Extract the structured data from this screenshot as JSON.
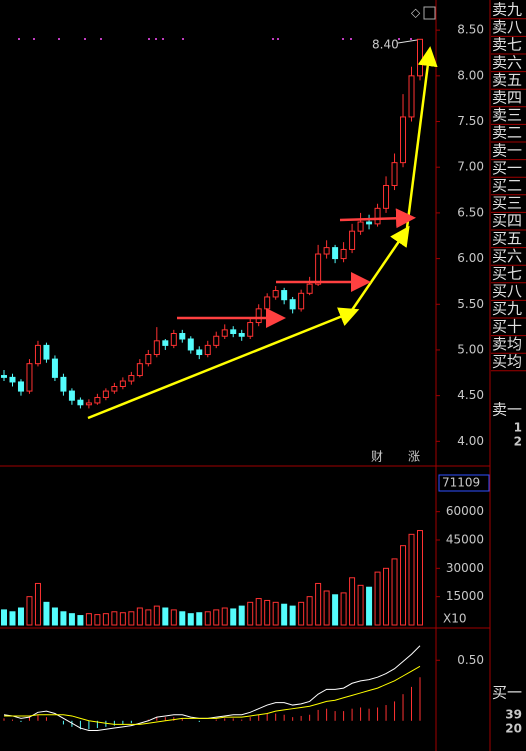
{
  "chart_data": [
    {
      "type": "candlestick",
      "open": [
        4.72,
        4.7,
        4.65,
        4.55,
        4.85,
        5.05,
        4.9,
        4.7,
        4.55,
        4.45,
        4.4,
        4.42,
        4.48,
        4.55,
        4.6,
        4.66,
        4.72,
        4.85,
        4.95,
        5.1,
        5.05,
        5.18,
        5.12,
        5.0,
        4.95,
        5.05,
        5.15,
        5.22,
        5.18,
        5.15,
        5.3,
        5.45,
        5.58,
        5.65,
        5.55,
        5.45,
        5.62,
        5.72,
        6.05,
        6.12,
        6.0,
        6.1,
        6.3,
        6.4,
        6.38,
        6.55,
        6.8,
        7.05,
        7.55,
        8.0
      ],
      "high": [
        4.78,
        4.74,
        4.68,
        4.9,
        5.1,
        5.08,
        4.94,
        4.74,
        4.58,
        4.48,
        4.46,
        4.52,
        4.58,
        4.64,
        4.7,
        4.76,
        4.9,
        5.0,
        5.25,
        5.12,
        5.22,
        5.22,
        5.15,
        5.04,
        5.1,
        5.2,
        5.28,
        5.26,
        5.22,
        5.35,
        5.5,
        5.62,
        5.7,
        5.68,
        5.58,
        5.66,
        5.8,
        6.15,
        6.2,
        6.15,
        6.18,
        6.38,
        6.5,
        6.48,
        6.6,
        6.9,
        7.15,
        7.8,
        8.1,
        8.4
      ],
      "low": [
        4.66,
        4.6,
        4.5,
        4.52,
        4.82,
        4.86,
        4.66,
        4.5,
        4.4,
        4.36,
        4.36,
        4.4,
        4.45,
        4.52,
        4.57,
        4.62,
        4.7,
        4.82,
        4.92,
        5.0,
        5.02,
        5.08,
        4.96,
        4.9,
        4.92,
        5.02,
        5.12,
        5.14,
        5.1,
        5.12,
        5.26,
        5.42,
        5.55,
        5.5,
        5.4,
        5.42,
        5.6,
        5.7,
        6.0,
        5.95,
        5.96,
        6.06,
        6.26,
        6.32,
        6.35,
        6.5,
        6.75,
        7.0,
        7.5,
        7.95
      ],
      "close": [
        4.7,
        4.65,
        4.55,
        4.85,
        5.05,
        4.9,
        4.7,
        4.55,
        4.45,
        4.4,
        4.42,
        4.48,
        4.55,
        4.6,
        4.66,
        4.72,
        4.85,
        4.95,
        5.1,
        5.05,
        5.18,
        5.12,
        5.0,
        4.95,
        5.05,
        5.15,
        5.22,
        5.18,
        5.15,
        5.3,
        5.45,
        5.58,
        5.65,
        5.55,
        5.45,
        5.62,
        5.72,
        6.05,
        6.12,
        6.0,
        6.1,
        6.3,
        6.4,
        6.38,
        6.55,
        6.8,
        7.05,
        7.55,
        8.0,
        8.4
      ],
      "up_color": "#ff3232",
      "down_color": "#54fcfc",
      "max_label": "8.40",
      "markers": [
        "财",
        "涨"
      ],
      "ylim": [
        3.73,
        8.83
      ],
      "yticks": [
        {
          "value": 4,
          "label": "4.00"
        },
        {
          "value": 4.5,
          "label": "4.50"
        },
        {
          "value": 5,
          "label": "5.00"
        },
        {
          "value": 5.5,
          "label": "5.50"
        },
        {
          "value": 6,
          "label": "6.00"
        },
        {
          "value": 6.5,
          "label": "6.50"
        },
        {
          "value": 7,
          "label": "7.00"
        },
        {
          "value": 7.5,
          "label": "7.50"
        },
        {
          "value": 8,
          "label": "8.00"
        },
        {
          "value": 8.5,
          "label": "8.50"
        }
      ]
    },
    {
      "type": "volume",
      "values": [
        8000,
        7000,
        9000,
        15000,
        22000,
        12000,
        9000,
        7000,
        6000,
        5000,
        6000,
        5500,
        6000,
        7000,
        6500,
        7000,
        9000,
        8000,
        10000,
        9000,
        8000,
        7000,
        6000,
        6500,
        7000,
        8000,
        9000,
        8500,
        10000,
        12000,
        14000,
        13000,
        12000,
        11000,
        10000,
        12000,
        15000,
        22000,
        18000,
        16000,
        17000,
        25000,
        21000,
        20000,
        28000,
        30000,
        35000,
        42000,
        48000,
        50000
      ],
      "readout": "71109",
      "scale_label": "X10",
      "ylim": [
        0,
        81000
      ],
      "yticks": [
        15000,
        30000,
        45000,
        60000
      ]
    },
    {
      "type": "macd",
      "values": [
        0.02,
        0.01,
        -0.01,
        0.03,
        0.05,
        0.03,
        0.0,
        -0.03,
        -0.05,
        -0.07,
        -0.07,
        -0.06,
        -0.05,
        -0.04,
        -0.03,
        -0.02,
        0.0,
        0.01,
        0.03,
        0.03,
        0.03,
        0.02,
        0.0,
        -0.01,
        0.0,
        0.01,
        0.02,
        0.02,
        0.01,
        0.03,
        0.05,
        0.06,
        0.06,
        0.05,
        0.03,
        0.04,
        0.05,
        0.09,
        0.1,
        0.08,
        0.08,
        0.1,
        0.11,
        0.1,
        0.11,
        0.13,
        0.16,
        0.22,
        0.28,
        0.36
      ],
      "dif": [
        0.05,
        0.04,
        0.02,
        0.03,
        0.07,
        0.08,
        0.06,
        0.02,
        -0.02,
        -0.06,
        -0.08,
        -0.08,
        -0.07,
        -0.06,
        -0.05,
        -0.04,
        -0.02,
        0.0,
        0.03,
        0.04,
        0.05,
        0.05,
        0.03,
        0.02,
        0.02,
        0.03,
        0.04,
        0.05,
        0.05,
        0.07,
        0.1,
        0.13,
        0.15,
        0.15,
        0.13,
        0.14,
        0.16,
        0.22,
        0.26,
        0.26,
        0.27,
        0.31,
        0.33,
        0.34,
        0.36,
        0.39,
        0.43,
        0.49,
        0.55,
        0.62
      ],
      "dea": [
        0.04,
        0.04,
        0.04,
        0.04,
        0.05,
        0.05,
        0.05,
        0.05,
        0.04,
        0.02,
        0.0,
        -0.01,
        -0.02,
        -0.03,
        -0.03,
        -0.03,
        -0.03,
        -0.02,
        -0.01,
        0.0,
        0.01,
        0.02,
        0.02,
        0.02,
        0.02,
        0.02,
        0.03,
        0.03,
        0.03,
        0.04,
        0.05,
        0.06,
        0.08,
        0.09,
        0.1,
        0.11,
        0.12,
        0.14,
        0.16,
        0.17,
        0.19,
        0.21,
        0.23,
        0.25,
        0.27,
        0.3,
        0.33,
        0.37,
        0.41,
        0.45
      ],
      "ylim": [
        -0.2,
        0.75
      ],
      "yticks": [
        {
          "value": 0.5,
          "label": "0.50"
        }
      ]
    }
  ],
  "order_book": {
    "rows": [
      "卖九",
      "卖八",
      "卖七",
      "卖六",
      "卖五",
      "卖四",
      "卖三",
      "卖二",
      "卖一",
      "买一",
      "买二",
      "买三",
      "买四",
      "买五",
      "买六",
      "买七",
      "买八",
      "买九",
      "买十",
      "卖均",
      "买均"
    ],
    "sell1": {
      "label": "卖一",
      "values": [
        1,
        2
      ]
    },
    "buy1": {
      "label": "买一",
      "values": [
        39,
        20
      ]
    }
  }
}
